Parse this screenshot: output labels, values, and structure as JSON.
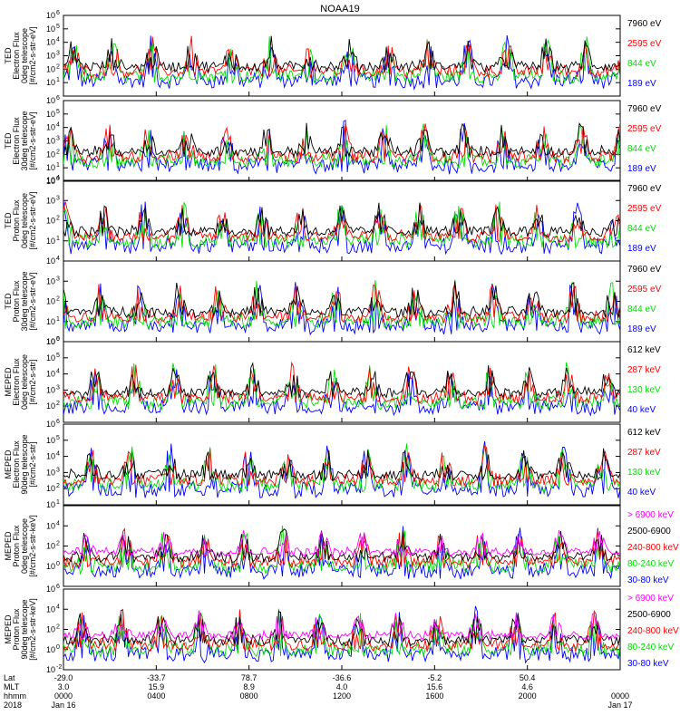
{
  "title": "NOAA19",
  "colors": {
    "black": "#000000",
    "red": "#ff0000",
    "green": "#00e000",
    "blue": "#0000ff",
    "magenta": "#ff00ff"
  },
  "chart_data": [
    {
      "type": "line",
      "ylabel": [
        "TED",
        "Electron Flux",
        "0deg telescope",
        "[#/cm2-s-str-eV]"
      ],
      "ylim": [
        1,
        1000000
      ],
      "yscale": "log",
      "yticks": [
        {
          "m": "10",
          "e": "1"
        },
        {
          "m": "10",
          "e": "2"
        },
        {
          "m": "10",
          "e": "3"
        },
        {
          "m": "10",
          "e": "4"
        },
        {
          "m": "10",
          "e": "5"
        },
        {
          "m": "10",
          "e": "6"
        }
      ],
      "series": [
        {
          "name": "7960 eV",
          "color": "#000000"
        },
        {
          "name": "2595 eV",
          "color": "#ff0000"
        },
        {
          "name": "844 eV",
          "color": "#00e000"
        },
        {
          "name": "189 eV",
          "color": "#0000ff"
        }
      ]
    },
    {
      "type": "line",
      "ylabel": [
        "TED",
        "Electron Flux",
        "30deg telescope",
        "[#/cm2-s-str-eV]"
      ],
      "ylim": [
        1,
        1000000
      ],
      "yscale": "log",
      "yticks": [
        {
          "m": "10",
          "e": "0"
        },
        {
          "m": "10",
          "e": "1"
        },
        {
          "m": "10",
          "e": "2"
        },
        {
          "m": "10",
          "e": "3"
        },
        {
          "m": "10",
          "e": "4"
        },
        {
          "m": "10",
          "e": "5"
        },
        {
          "m": "10",
          "e": "6"
        }
      ],
      "series": [
        {
          "name": "7960 eV",
          "color": "#000000"
        },
        {
          "name": "2595 eV",
          "color": "#ff0000"
        },
        {
          "name": "844 eV",
          "color": "#00e000"
        },
        {
          "name": "189 eV",
          "color": "#0000ff"
        }
      ]
    },
    {
      "type": "line",
      "ylabel": [
        "TED",
        "Proton Flux",
        "0deg telescope",
        "[#/cm2-s-str-eV]"
      ],
      "ylim": [
        1,
        10000
      ],
      "yscale": "log",
      "yticks": [
        {
          "m": "10",
          "e": "1"
        },
        {
          "m": "10",
          "e": "2"
        },
        {
          "m": "10",
          "e": "3"
        },
        {
          "m": "10",
          "e": "4"
        }
      ],
      "series": [
        {
          "name": "7960 eV",
          "color": "#000000"
        },
        {
          "name": "2595 eV",
          "color": "#ff0000"
        },
        {
          "name": "844 eV",
          "color": "#00e000"
        },
        {
          "name": "189 eV",
          "color": "#0000ff"
        }
      ]
    },
    {
      "type": "line",
      "ylabel": [
        "TED",
        "Proton Flux",
        "30deg telescope",
        "[#/cm2-s-str-eV]"
      ],
      "ylim": [
        1,
        10000
      ],
      "yscale": "log",
      "yticks": [
        {
          "m": "10",
          "e": "0"
        },
        {
          "m": "10",
          "e": "1"
        },
        {
          "m": "10",
          "e": "2"
        },
        {
          "m": "10",
          "e": "3"
        },
        {
          "m": "10",
          "e": "4"
        }
      ],
      "series": [
        {
          "name": "7960 eV",
          "color": "#000000"
        },
        {
          "name": "2595 eV",
          "color": "#ff0000"
        },
        {
          "name": "844 eV",
          "color": "#00e000"
        },
        {
          "name": "189 eV",
          "color": "#0000ff"
        }
      ]
    },
    {
      "type": "line",
      "ylabel": [
        "MEPED",
        "Electron Flux",
        "0deg telescope",
        "[#/cm2-s-str]"
      ],
      "ylim": [
        10,
        1000000
      ],
      "yscale": "log",
      "yticks": [
        {
          "m": "10",
          "e": "2"
        },
        {
          "m": "10",
          "e": "3"
        },
        {
          "m": "10",
          "e": "4"
        },
        {
          "m": "10",
          "e": "5"
        },
        {
          "m": "10",
          "e": "6"
        }
      ],
      "series": [
        {
          "name": "612 keV",
          "color": "#000000"
        },
        {
          "name": "287 keV",
          "color": "#ff0000"
        },
        {
          "name": "130 keV",
          "color": "#00e000"
        },
        {
          "name": "40 keV",
          "color": "#0000ff"
        }
      ]
    },
    {
      "type": "line",
      "ylabel": [
        "MEPED",
        "Electron Flux",
        "90deg telescope",
        "[#/cm2-s-str]"
      ],
      "ylim": [
        10,
        1000000
      ],
      "yscale": "log",
      "yticks": [
        {
          "m": "10",
          "e": "1"
        },
        {
          "m": "10",
          "e": "2"
        },
        {
          "m": "10",
          "e": "3"
        },
        {
          "m": "10",
          "e": "4"
        },
        {
          "m": "10",
          "e": "5"
        },
        {
          "m": "10",
          "e": "6"
        }
      ],
      "series": [
        {
          "name": "612 keV",
          "color": "#000000"
        },
        {
          "name": "287 keV",
          "color": "#ff0000"
        },
        {
          "name": "130 keV",
          "color": "#00e000"
        },
        {
          "name": "40 keV",
          "color": "#0000ff"
        }
      ]
    },
    {
      "type": "line",
      "ylabel": [
        "MEPED",
        "Proton Flux",
        "0deg telescope",
        "[#/cm2-s-str-keV]"
      ],
      "ylim": [
        0.01,
        1000000
      ],
      "yscale": "log",
      "yticks": [
        {
          "m": "10",
          "e": "0"
        },
        {
          "m": "10",
          "e": "2"
        },
        {
          "m": "10",
          "e": "4"
        }
      ],
      "series": [
        {
          "name": "> 6900 keV",
          "color": "#ff00ff"
        },
        {
          "name": "2500-6900",
          "color": "#000000"
        },
        {
          "name": "240-800 keV",
          "color": "#ff0000"
        },
        {
          "name": "80-240 keV",
          "color": "#00e000"
        },
        {
          "name": "30-80 keV",
          "color": "#0000ff"
        }
      ]
    },
    {
      "type": "line",
      "ylabel": [
        "MEPED",
        "Proton Flux",
        "90deg telescope",
        "[#/cm2-s-str-keV]"
      ],
      "ylim": [
        0.01,
        1000000
      ],
      "yscale": "log",
      "yticks": [
        {
          "m": "10",
          "e": "-2"
        },
        {
          "m": "10",
          "e": "0"
        },
        {
          "m": "10",
          "e": "2"
        },
        {
          "m": "10",
          "e": "4"
        },
        {
          "m": "10",
          "e": "6"
        }
      ],
      "series": [
        {
          "name": "> 6900 keV",
          "color": "#ff00ff"
        },
        {
          "name": "2500-6900",
          "color": "#000000"
        },
        {
          "name": "240-800 keV",
          "color": "#ff0000"
        },
        {
          "name": "80-240 keV",
          "color": "#00e000"
        },
        {
          "name": "30-80 keV",
          "color": "#0000ff"
        }
      ]
    }
  ],
  "x_axis": {
    "row_labels": [
      "Lat",
      "MLT",
      "hhmm",
      "2018"
    ],
    "ticks": [
      {
        "time": "0000",
        "lat": "-29.0",
        "mlt": "3.0",
        "date": "Jan 16"
      },
      {
        "time": "0400",
        "lat": "-33.7",
        "mlt": "15.9",
        "date": ""
      },
      {
        "time": "0800",
        "lat": "78.7",
        "mlt": "8.9",
        "date": ""
      },
      {
        "time": "1200",
        "lat": "-36.6",
        "mlt": "4.0",
        "date": ""
      },
      {
        "time": "1600",
        "lat": "-5.2",
        "mlt": "15.6",
        "date": ""
      },
      {
        "time": "2000",
        "lat": "50.4",
        "mlt": "4.6",
        "date": ""
      },
      {
        "time": "0000",
        "lat": "",
        "mlt": "",
        "date": "Jan 17"
      }
    ],
    "range_hours": [
      0,
      24
    ]
  }
}
